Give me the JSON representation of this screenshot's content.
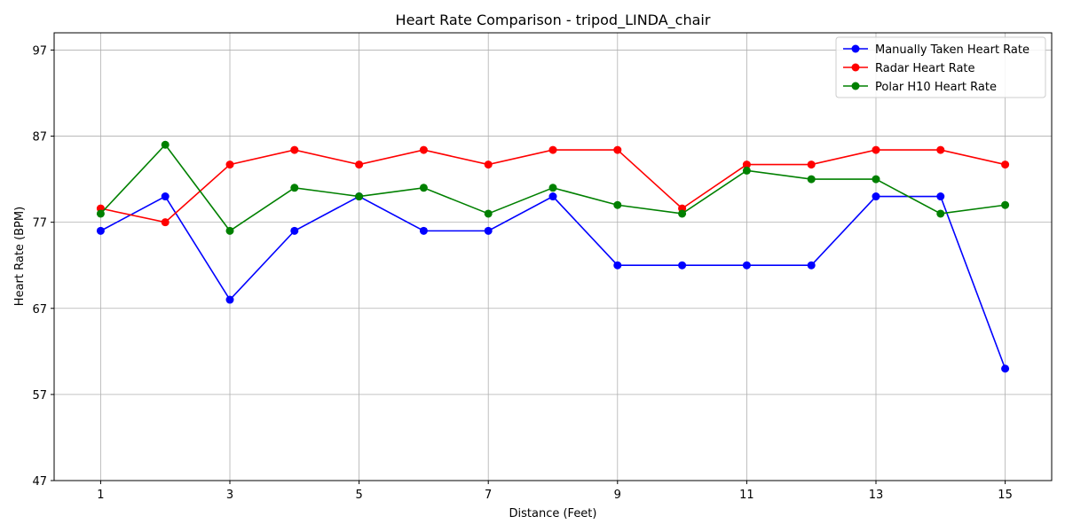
{
  "chart_data": {
    "type": "line",
    "title": "Heart Rate Comparison - tripod_LINDA_chair",
    "xlabel": "Distance (Feet)",
    "ylabel": "Heart Rate (BPM)",
    "x": [
      1,
      2,
      3,
      4,
      5,
      6,
      7,
      8,
      9,
      10,
      11,
      12,
      13,
      14,
      15
    ],
    "x_ticks": [
      1,
      3,
      5,
      7,
      9,
      11,
      13,
      15
    ],
    "y_ticks": [
      47,
      57,
      67,
      77,
      87,
      97
    ],
    "xlim": [
      0.28,
      15.72
    ],
    "ylim": [
      47,
      99
    ],
    "grid": true,
    "legend_position": "top-right",
    "series": [
      {
        "name": "Manually Taken Heart Rate",
        "color": "#0000ff",
        "values": [
          76,
          80,
          68,
          76,
          80,
          76,
          76,
          80,
          72,
          72,
          72,
          72,
          80,
          80,
          60
        ]
      },
      {
        "name": "Radar Heart Rate",
        "color": "#ff0000",
        "values": [
          78.6,
          77,
          83.7,
          85.4,
          83.7,
          85.4,
          83.7,
          85.4,
          85.4,
          78.6,
          83.7,
          83.7,
          85.4,
          85.4,
          83.7
        ]
      },
      {
        "name": "Polar H10 Heart Rate",
        "color": "#008000",
        "values": [
          78,
          86,
          76,
          81,
          80,
          81,
          78,
          81,
          79,
          78,
          83,
          82,
          82,
          78,
          79
        ]
      }
    ]
  }
}
